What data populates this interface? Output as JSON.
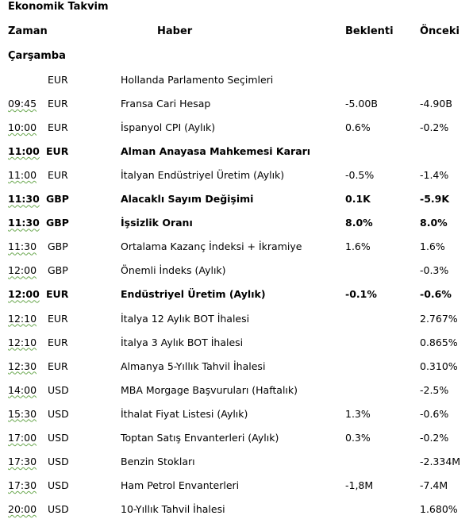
{
  "title": "Ekonomik Takvim",
  "headers": {
    "time": "Zaman",
    "event": "Haber",
    "expected": "Beklenti",
    "previous": "Önceki"
  },
  "day": "Çarşamba",
  "rows": [
    {
      "time": "",
      "currency": "EUR",
      "event": "Hollanda Parlamento Seçimleri",
      "expected": "",
      "previous": "",
      "bold": false
    },
    {
      "time": "09:45",
      "currency": "EUR",
      "event": "Fransa Cari Hesap",
      "expected": "-5.00B",
      "previous": "-4.90B",
      "bold": false
    },
    {
      "time": "10:00",
      "currency": "EUR",
      "event": "İspanyol CPI (Aylık)",
      "expected": "0.6%",
      "previous": "-0.2%",
      "bold": false
    },
    {
      "time": "11:00",
      "currency": "EUR",
      "event": "Alman Anayasa Mahkemesi Kararı",
      "expected": "",
      "previous": "",
      "bold": true
    },
    {
      "time": "11:00",
      "currency": "EUR",
      "event": "İtalyan Endüstriyel Üretim (Aylık)",
      "expected": "-0.5%",
      "previous": "-1.4%",
      "bold": false
    },
    {
      "time": "11:30",
      "currency": "GBP",
      "event": "Alacaklı Sayım Değişimi",
      "expected": "0.1K",
      "previous": "-5.9K",
      "bold": true
    },
    {
      "time": "11:30",
      "currency": "GBP",
      "event": "İşsizlik Oranı",
      "expected": "8.0%",
      "previous": "8.0%",
      "bold": true
    },
    {
      "time": "11:30",
      "currency": "GBP",
      "event": "Ortalama Kazanç İndeksi + İkramiye",
      "expected": "1.6%",
      "previous": "1.6%",
      "bold": false
    },
    {
      "time": "12:00",
      "currency": "GBP",
      "event": "Önemli İndeks (Aylık)",
      "expected": "",
      "previous": "-0.3%",
      "bold": false
    },
    {
      "time": "12:00",
      "currency": "EUR",
      "event": "Endüstriyel Üretim (Aylık)",
      "expected": "-0.1%",
      "previous": "-0.6%",
      "bold": true
    },
    {
      "time": "12:10",
      "currency": "EUR",
      "event": "İtalya 12 Aylık BOT İhalesi",
      "expected": "",
      "previous": "2.767%",
      "bold": false
    },
    {
      "time": "12:10",
      "currency": "EUR",
      "event": "İtalya 3 Aylık BOT İhalesi",
      "expected": "",
      "previous": "0.865%",
      "bold": false
    },
    {
      "time": "12:30",
      "currency": "EUR",
      "event": "Almanya 5-Yıllık Tahvil  İhalesi",
      "expected": "",
      "previous": "0.310%",
      "bold": false
    },
    {
      "time": "14:00",
      "currency": "USD",
      "event": "MBA Morgage Başvuruları (Haftalık)",
      "expected": "",
      "previous": "-2.5%",
      "bold": false
    },
    {
      "time": "15:30",
      "currency": "USD",
      "event": "İthalat Fiyat Listesi (Aylık)",
      "expected": "1.3%",
      "previous": "-0.6%",
      "bold": false
    },
    {
      "time": "17:00",
      "currency": "USD",
      "event": "Toptan Satış Envanterleri (Aylık)",
      "expected": "0.3%",
      "previous": "-0.2%",
      "bold": false
    },
    {
      "time": "17:30",
      "currency": "USD",
      "event": "Benzin Stokları",
      "expected": "",
      "previous": "-2.334M",
      "bold": false
    },
    {
      "time": "17:30",
      "currency": "USD",
      "event": "Ham Petrol Envanterleri",
      "expected": "-1,8M",
      "previous": "-7.4M",
      "bold": false
    },
    {
      "time": "20:00",
      "currency": "USD",
      "event": "10-Yıllık Tahvil İhalesi",
      "expected": "",
      "previous": "1.680%",
      "bold": false
    }
  ]
}
